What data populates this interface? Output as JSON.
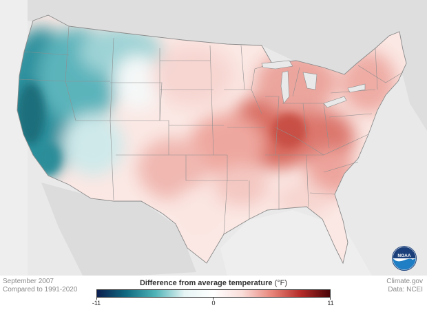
{
  "map": {
    "period": "September 2007",
    "baseline": "Compared to 1991-2020"
  },
  "legend": {
    "title": "Difference from average temperature",
    "unit": "(°F)",
    "min_label": "-11",
    "mid_label": "0",
    "max_label": "11",
    "range": [
      -11,
      11
    ],
    "colors": [
      "#0b1e4f",
      "#0f6a80",
      "#4fb3b7",
      "#e6f4f4",
      "#ffffff",
      "#f9dcd8",
      "#e8857a",
      "#b42a28",
      "#4a0508"
    ]
  },
  "credits": {
    "source": "Climate.gov",
    "data": "Data: NCEI",
    "logo_text": "NOAA"
  },
  "colors": {
    "background": "#ececec",
    "land_outside": "#e9e9e9",
    "state_border": "#8a8a8a",
    "cool_anomaly": "#2f97a4",
    "warm_anomaly": "#d9685f",
    "neutral": "#ffffff"
  }
}
